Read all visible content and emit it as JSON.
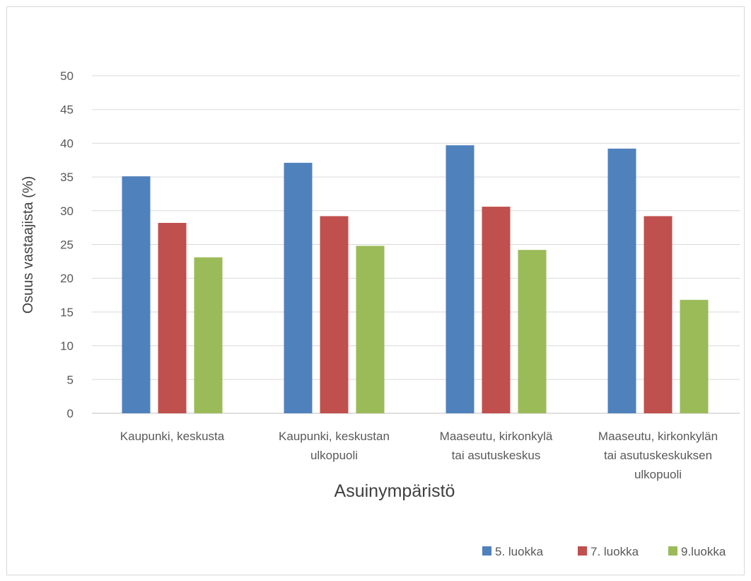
{
  "chart_data": {
    "type": "bar",
    "title": "",
    "xlabel": "Asuinympäristö",
    "ylabel": "Osuus vastaajista (%)",
    "ylim": [
      0,
      50
    ],
    "yticks": [
      0,
      5,
      10,
      15,
      20,
      25,
      30,
      35,
      40,
      45,
      50
    ],
    "grid": true,
    "legend_position": "bottom-right",
    "categories": [
      [
        "Kaupunki, keskusta"
      ],
      [
        "Kaupunki, keskustan",
        "ulkopuoli"
      ],
      [
        "Maaseutu, kirkonkylä",
        "tai asutuskeskus"
      ],
      [
        "Maaseutu, kirkonkylän",
        "tai asutuskeskuksen",
        "ulkopuoli"
      ]
    ],
    "series": [
      {
        "name": "5. luokka",
        "color": "#4f81bd",
        "values": [
          35.1,
          37.1,
          39.7,
          39.2
        ]
      },
      {
        "name": "7. luokka",
        "color": "#c0504d",
        "values": [
          28.2,
          29.2,
          30.6,
          29.2
        ]
      },
      {
        "name": "9.luokka",
        "color": "#9bbb59",
        "values": [
          23.1,
          24.8,
          24.2,
          16.8
        ]
      }
    ]
  }
}
